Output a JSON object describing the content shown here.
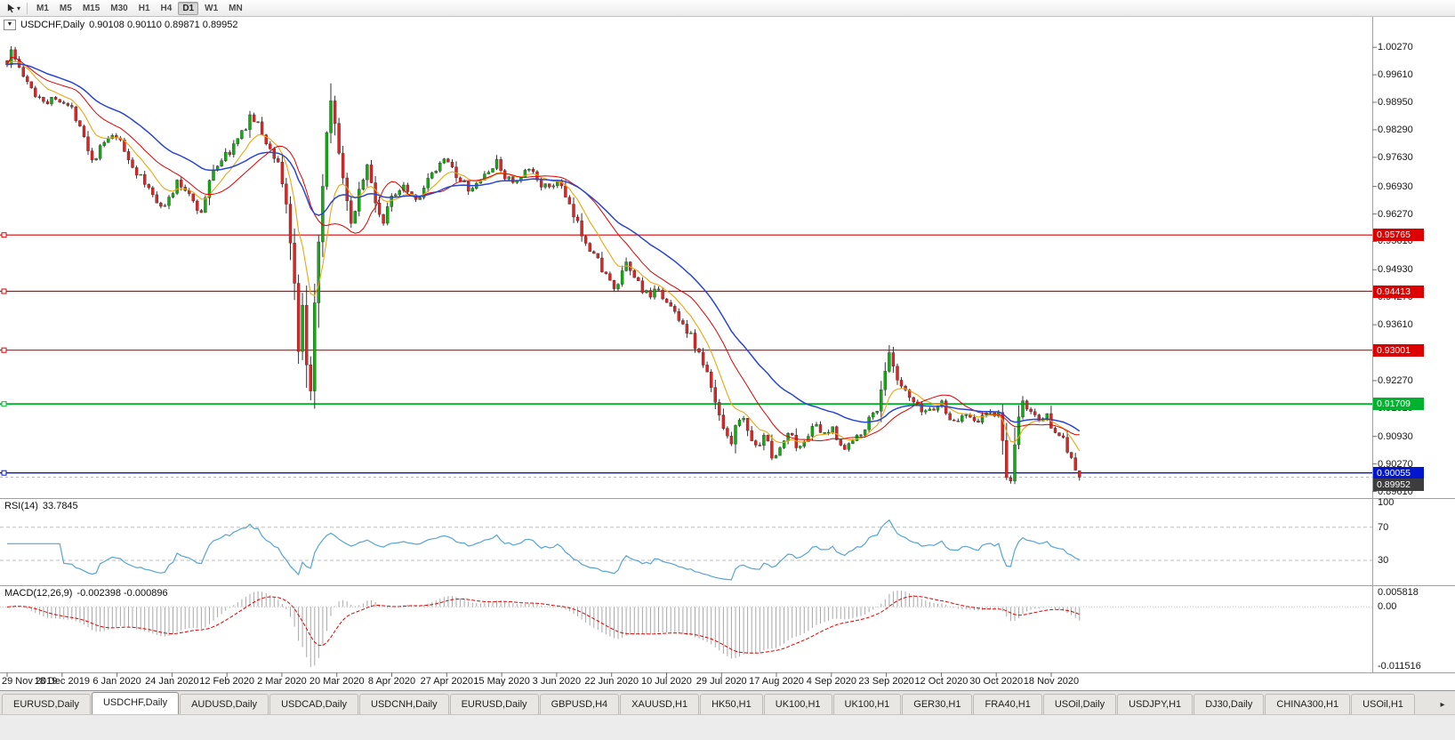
{
  "toolbar": {
    "timeframes": [
      "M1",
      "M5",
      "M15",
      "M30",
      "H1",
      "H4",
      "D1",
      "W1",
      "MN"
    ],
    "active": "D1",
    "tool_caret": "▾"
  },
  "chart": {
    "title": {
      "symbol": "USDCHF,Daily",
      "ohlc": "0.90108 0.90110 0.89871 0.89952",
      "menu_glyph": "▼"
    },
    "y_axis": [
      1.0027,
      0.9961,
      0.9895,
      0.9829,
      0.9763,
      0.9693,
      0.9627,
      0.9561,
      0.9493,
      0.9427,
      0.9361,
      0.9295,
      0.9227,
      0.9161,
      0.9093,
      0.9027,
      0.8961
    ],
    "x_axis": [
      "29 Nov 2019",
      "18 Dec 2019",
      "6 Jan 2020",
      "24 Jan 2020",
      "12 Feb 2020",
      "2 Mar 2020",
      "20 Mar 2020",
      "8 Apr 2020",
      "27 Apr 2020",
      "15 May 2020",
      "3 Jun 2020",
      "22 Jun 2020",
      "10 Jul 2020",
      "29 Jul 2020",
      "17 Aug 2020",
      "4 Sep 2020",
      "23 Sep 2020",
      "12 Oct 2020",
      "30 Oct 2020",
      "18 Nov 2020"
    ],
    "levels": [
      {
        "price": 0.95765,
        "color": "#dd0000",
        "width": 1.2
      },
      {
        "price": 0.94413,
        "color": "#dd0000",
        "width": 1.2
      },
      {
        "price": 0.93001,
        "color": "#dd0000",
        "width": 1.2
      },
      {
        "price": 0.91709,
        "color": "#00b22d",
        "width": 1.8
      },
      {
        "price": 0.90055,
        "color": "#0017cf",
        "width": 1.4
      }
    ],
    "current_price": {
      "value": 0.89952,
      "tag_color": "#3d3d3d",
      "line_color": "#b8b8b8"
    }
  },
  "rsi_panel": {
    "name": "RSI(14)",
    "value": "33.7845",
    "period": 14,
    "levels": [
      70,
      30
    ],
    "axis_labels": [
      100,
      70,
      30
    ],
    "color": "#55a4d6"
  },
  "macd_panel": {
    "name": "MACD(12,26,9)",
    "values_text": "-0.002398 -0.000896",
    "fast": 12,
    "slow": 26,
    "signal_period": 9,
    "axis_labels": {
      "top": "0.005818",
      "zero": "0.00",
      "bottom": "-0.011516"
    },
    "hist_color": "#a8a8a8",
    "signal_color": "#e00000"
  },
  "tabs": {
    "items": [
      "EURUSD,Daily",
      "USDCHF,Daily",
      "AUDUSD,Daily",
      "USDCAD,Daily",
      "USDCNH,Daily",
      "EURUSD,Daily",
      "GBPUSD,H4",
      "XAUUSD,H1",
      "HK50,H1",
      "UK100,H1",
      "UK100,H1",
      "GER30,H1",
      "FRA40,H1",
      "USOil,Daily",
      "USDJPY,H1",
      "DJ30,Daily",
      "CHINA300,H1",
      "USOil,H1"
    ],
    "active_index": 1,
    "scroll_right": "▸"
  },
  "chart_data": {
    "type": "candlestick",
    "symbol": "USDCHF",
    "timeframe": "Daily",
    "bars": 266,
    "seed": 1337,
    "noise": 0.0011,
    "price_domain": [
      0.8945,
      1.01
    ],
    "up_color": "#0fae0f",
    "down_color": "#e32222",
    "wick_color": "#333333",
    "last_bar": {
      "open": 0.90108,
      "high": 0.9011,
      "low": 0.89871,
      "close": 0.89952
    },
    "close_anchors": [
      [
        0,
        0.9992
      ],
      [
        1,
        1.0018
      ],
      [
        3,
        0.9978
      ],
      [
        5,
        0.9938
      ],
      [
        7,
        0.9915
      ],
      [
        10,
        0.9898
      ],
      [
        13,
        0.9906
      ],
      [
        16,
        0.9876
      ],
      [
        18,
        0.9846
      ],
      [
        21,
        0.9756
      ],
      [
        24,
        0.9798
      ],
      [
        27,
        0.9812
      ],
      [
        31,
        0.9742
      ],
      [
        34,
        0.9698
      ],
      [
        37,
        0.9662
      ],
      [
        39,
        0.9645
      ],
      [
        42,
        0.97
      ],
      [
        45,
        0.9678
      ],
      [
        48,
        0.9627
      ],
      [
        51,
        0.9738
      ],
      [
        55,
        0.9778
      ],
      [
        58,
        0.9818
      ],
      [
        60,
        0.9862
      ],
      [
        62,
        0.984
      ],
      [
        65,
        0.978
      ],
      [
        67,
        0.9752
      ],
      [
        69,
        0.965
      ],
      [
        70,
        0.956
      ],
      [
        71,
        0.945
      ],
      [
        72,
        0.929
      ],
      [
        73,
        0.94
      ],
      [
        74,
        0.9255
      ],
      [
        75,
        0.9212
      ],
      [
        76,
        0.9405
      ],
      [
        77,
        0.955
      ],
      [
        78,
        0.969
      ],
      [
        79,
        0.9815
      ],
      [
        80,
        0.989
      ],
      [
        82,
        0.978
      ],
      [
        84,
        0.9648
      ],
      [
        85,
        0.96
      ],
      [
        87,
        0.9685
      ],
      [
        89,
        0.9742
      ],
      [
        91,
        0.9655
      ],
      [
        93,
        0.9605
      ],
      [
        95,
        0.9668
      ],
      [
        98,
        0.9702
      ],
      [
        101,
        0.9662
      ],
      [
        104,
        0.9705
      ],
      [
        107,
        0.9742
      ],
      [
        109,
        0.9762
      ],
      [
        112,
        0.9702
      ],
      [
        115,
        0.9682
      ],
      [
        118,
        0.9722
      ],
      [
        121,
        0.9748
      ],
      [
        123,
        0.9718
      ],
      [
        126,
        0.97
      ],
      [
        129,
        0.9733
      ],
      [
        132,
        0.9702
      ],
      [
        134,
        0.9682
      ],
      [
        136,
        0.9712
      ],
      [
        139,
        0.964
      ],
      [
        142,
        0.9582
      ],
      [
        145,
        0.953
      ],
      [
        148,
        0.9482
      ],
      [
        150,
        0.944
      ],
      [
        153,
        0.9502
      ],
      [
        156,
        0.9462
      ],
      [
        159,
        0.942
      ],
      [
        161,
        0.9452
      ],
      [
        163,
        0.9412
      ],
      [
        166,
        0.938
      ],
      [
        169,
        0.9332
      ],
      [
        171,
        0.929
      ],
      [
        173,
        0.9242
      ],
      [
        175,
        0.9172
      ],
      [
        177,
        0.912
      ],
      [
        179,
        0.9082
      ],
      [
        181,
        0.9142
      ],
      [
        183,
        0.9112
      ],
      [
        185,
        0.9062
      ],
      [
        187,
        0.9102
      ],
      [
        189,
        0.9042
      ],
      [
        191,
        0.9062
      ],
      [
        193,
        0.9102
      ],
      [
        196,
        0.9062
      ],
      [
        199,
        0.9122
      ],
      [
        202,
        0.9092
      ],
      [
        204,
        0.9112
      ],
      [
        207,
        0.9062
      ],
      [
        210,
        0.9092
      ],
      [
        213,
        0.9132
      ],
      [
        215,
        0.9162
      ],
      [
        217,
        0.9252
      ],
      [
        218,
        0.9288
      ],
      [
        220,
        0.9222
      ],
      [
        223,
        0.9182
      ],
      [
        226,
        0.9152
      ],
      [
        229,
        0.9162
      ],
      [
        231,
        0.9172
      ],
      [
        234,
        0.9122
      ],
      [
        237,
        0.9152
      ],
      [
        240,
        0.9132
      ],
      [
        243,
        0.9152
      ],
      [
        245,
        0.9142
      ],
      [
        246,
        0.9082
      ],
      [
        247,
        0.9002
      ],
      [
        248,
        0.8976
      ],
      [
        249,
        0.9062
      ],
      [
        250,
        0.9142
      ],
      [
        251,
        0.9172
      ],
      [
        253,
        0.9152
      ],
      [
        255,
        0.9132
      ],
      [
        257,
        0.9142
      ],
      [
        258,
        0.9122
      ],
      [
        260,
        0.9102
      ],
      [
        262,
        0.9062
      ],
      [
        263,
        0.9042
      ],
      [
        264,
        0.9012
      ],
      [
        265,
        0.8995
      ]
    ],
    "moving_averages": [
      {
        "period": 9,
        "method": "ema",
        "color": "#efa510",
        "width": 1.1
      },
      {
        "period": 18,
        "method": "sma",
        "color": "#e00000",
        "width": 1.0
      },
      {
        "period": 34,
        "method": "ema",
        "color": "#2946d2",
        "width": 1.5
      }
    ]
  }
}
